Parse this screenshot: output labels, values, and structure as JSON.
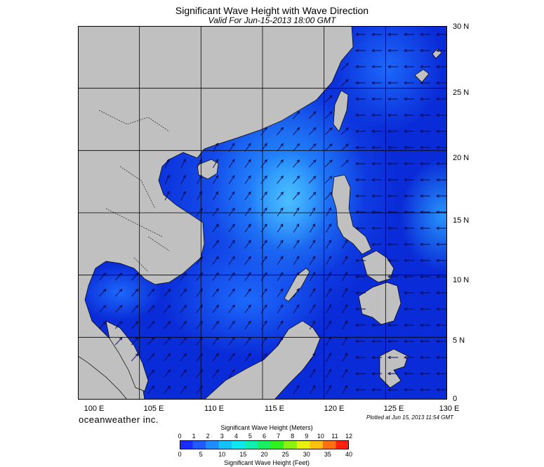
{
  "header": {
    "title": "Significant Wave Height with Wave Direction",
    "subtitle": "Valid For Jun-15-2013 18:00 GMT"
  },
  "map": {
    "lon_range": [
      100,
      130
    ],
    "lat_range": [
      0,
      30
    ],
    "grid_step_deg": 5,
    "lat_labels": [
      "30 N",
      "25 N",
      "20 N",
      "15 N",
      "10 N",
      "5 N",
      "0"
    ],
    "lon_labels": [
      "100 E",
      "105 E",
      "110 E",
      "115 E",
      "120 E",
      "125 E",
      "130 E"
    ],
    "land_color": "#c0c0c0",
    "deep_color": "#0a2cd8"
  },
  "footer": {
    "brand": "oceanweather inc.",
    "plotted": "Plotted at Jun 15, 2013 11:54 GMT"
  },
  "colorbar": {
    "title_top": "Significant Wave Height (Meters)",
    "title_bottom": "Significant Wave Height (Feet)",
    "meters_ticks": [
      "0",
      "1",
      "2",
      "3",
      "4",
      "5",
      "6",
      "7",
      "8",
      "9",
      "10",
      "11",
      "12"
    ],
    "feet_ticks": [
      "0",
      "5",
      "10",
      "15",
      "20",
      "25",
      "30",
      "35",
      "40"
    ],
    "colors": [
      "#1a2cff",
      "#1f5bff",
      "#1f8cff",
      "#15c2ff",
      "#0fe8ee",
      "#10eeb0",
      "#1aee60",
      "#30f020",
      "#8cf010",
      "#e8f010",
      "#ffc010",
      "#ff7010",
      "#ff2010"
    ]
  }
}
